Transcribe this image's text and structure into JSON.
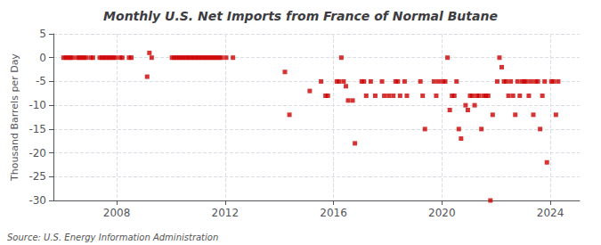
{
  "chart_data": {
    "type": "scatter",
    "title": "Monthly U.S. Net Imports from France of Normal Butane",
    "ylabel": "Thousand Barrels per Day",
    "annotations": [
      "Source: U.S. Energy Information Administration"
    ],
    "color": "#cc0000",
    "marker": "square",
    "grid": true,
    "xlim": [
      2005.666667,
      2025.083333
    ],
    "xticks": [
      2008,
      2012,
      2016,
      2020,
      2024
    ],
    "ylim": [
      -30,
      5
    ],
    "yticks": [
      5,
      0,
      -5,
      -10,
      -15,
      -20,
      -25,
      -30
    ],
    "x": [
      2006.041667,
      2006.125,
      2006.208333,
      2006.291667,
      2006.375,
      2006.541667,
      2006.625,
      2006.708333,
      2006.791667,
      2006.875,
      2007.041667,
      2007.125,
      2007.375,
      2007.458333,
      2007.541667,
      2007.625,
      2007.708333,
      2007.791667,
      2007.875,
      2007.958333,
      2008.125,
      2008.208333,
      2008.458333,
      2008.541667,
      2009.125,
      2009.208333,
      2009.291667,
      2010.041667,
      2010.125,
      2010.208333,
      2010.291667,
      2010.375,
      2010.458333,
      2010.541667,
      2010.625,
      2010.708333,
      2010.791667,
      2010.875,
      2010.958333,
      2011.041667,
      2011.125,
      2011.208333,
      2011.291667,
      2011.375,
      2011.458333,
      2011.541667,
      2011.625,
      2011.708333,
      2011.791667,
      2011.875,
      2012.041667,
      2012.291667,
      2014.208333,
      2014.375,
      2015.125,
      2015.541667,
      2015.708333,
      2015.791667,
      2016.125,
      2016.208333,
      2016.291667,
      2016.375,
      2016.458333,
      2016.541667,
      2016.708333,
      2016.791667,
      2017.041667,
      2017.125,
      2017.208333,
      2017.375,
      2017.541667,
      2017.791667,
      2017.875,
      2018.041667,
      2018.208333,
      2018.291667,
      2018.375,
      2018.458333,
      2018.625,
      2018.708333,
      2019.208333,
      2019.291667,
      2019.375,
      2019.708333,
      2019.791667,
      2019.875,
      2020.041667,
      2020.125,
      2020.208333,
      2020.291667,
      2020.375,
      2020.458333,
      2020.541667,
      2020.625,
      2020.708333,
      2020.875,
      2020.958333,
      2021.041667,
      2021.125,
      2021.208333,
      2021.291667,
      2021.375,
      2021.458333,
      2021.541667,
      2021.625,
      2021.708333,
      2021.791667,
      2021.875,
      2022.041667,
      2022.125,
      2022.208333,
      2022.291667,
      2022.375,
      2022.458333,
      2022.541667,
      2022.625,
      2022.708333,
      2022.791667,
      2022.875,
      2022.958333,
      2023.041667,
      2023.125,
      2023.208333,
      2023.291667,
      2023.375,
      2023.458333,
      2023.541667,
      2023.625,
      2023.708333,
      2023.791667,
      2023.875,
      2024.041667,
      2024.125,
      2024.208333,
      2024.291667
    ],
    "values": [
      0,
      0,
      0,
      0,
      0,
      0,
      0,
      0,
      0,
      0,
      0,
      0,
      0,
      0,
      0,
      0,
      0,
      0,
      0,
      0,
      0,
      0,
      0,
      0,
      -4,
      1,
      0,
      0,
      0,
      0,
      0,
      0,
      0,
      0,
      0,
      0,
      0,
      0,
      0,
      0,
      0,
      0,
      0,
      0,
      0,
      0,
      0,
      0,
      0,
      0,
      0,
      0,
      -3,
      -12,
      -7,
      -5,
      -8,
      -8,
      -5,
      -5,
      0,
      -5,
      -6,
      -9,
      -9,
      -18,
      -5,
      -5,
      -8,
      -5,
      -8,
      -5,
      -8,
      -8,
      -8,
      -5,
      -5,
      -8,
      -5,
      -8,
      -5,
      -8,
      -15,
      -5,
      -8,
      -5,
      -5,
      -5,
      0,
      -11,
      -8,
      -8,
      -5,
      -15,
      -17,
      -10,
      -11,
      -8,
      -8,
      -10,
      -8,
      -8,
      -15,
      -8,
      -8,
      -8,
      -30,
      -12,
      -5,
      0,
      -2,
      -5,
      -5,
      -8,
      -5,
      -8,
      -12,
      -5,
      -8,
      -5,
      -5,
      -5,
      -8,
      -5,
      -12,
      -5,
      -5,
      -15,
      -8,
      -5,
      -22,
      -5,
      -5,
      -12,
      -5
    ]
  }
}
